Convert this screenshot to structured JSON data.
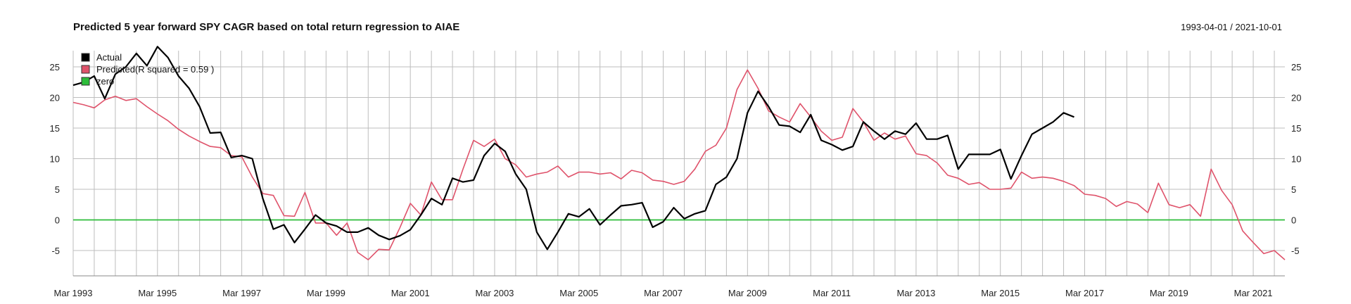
{
  "chart_data": {
    "type": "line",
    "title": "Predicted 5 year forward SPY CAGR based on total return regression to AIAE",
    "date_range": "1993-04-01 / 2021-10-01",
    "xlabel": "",
    "ylabel": "",
    "x_range": [
      1993.0,
      2021.75
    ],
    "ylim": [
      -8,
      28
    ],
    "yticks": [
      -5,
      0,
      5,
      10,
      15,
      20,
      25
    ],
    "xticks": [
      {
        "year": 1993,
        "label": "Mar 1993"
      },
      {
        "year": 1995,
        "label": "Mar 1995"
      },
      {
        "year": 1997,
        "label": "Mar 1997"
      },
      {
        "year": 1999,
        "label": "Mar 1999"
      },
      {
        "year": 2001,
        "label": "Mar 2001"
      },
      {
        "year": 2003,
        "label": "Mar 2003"
      },
      {
        "year": 2005,
        "label": "Mar 2005"
      },
      {
        "year": 2007,
        "label": "Mar 2007"
      },
      {
        "year": 2009,
        "label": "Mar 2009"
      },
      {
        "year": 2011,
        "label": "Mar 2011"
      },
      {
        "year": 2013,
        "label": "Mar 2013"
      },
      {
        "year": 2015,
        "label": "Mar 2015"
      },
      {
        "year": 2017,
        "label": "Mar 2017"
      },
      {
        "year": 2019,
        "label": "Mar 2019"
      },
      {
        "year": 2021,
        "label": "Mar 2021"
      }
    ],
    "grid": true,
    "legend_position": "top-left",
    "series": [
      {
        "name": "Actual",
        "color": "#000000",
        "points": [
          [
            1993.0,
            22.0
          ],
          [
            1993.25,
            22.5
          ],
          [
            1993.5,
            23.5
          ],
          [
            1993.75,
            19.8
          ],
          [
            1994.0,
            23.8
          ],
          [
            1994.25,
            25.0
          ],
          [
            1994.5,
            27.2
          ],
          [
            1994.75,
            25.2
          ],
          [
            1995.0,
            28.3
          ],
          [
            1995.25,
            26.5
          ],
          [
            1995.5,
            23.5
          ],
          [
            1995.75,
            21.5
          ],
          [
            1996.0,
            18.5
          ],
          [
            1996.25,
            14.2
          ],
          [
            1996.5,
            14.3
          ],
          [
            1996.75,
            10.2
          ],
          [
            1997.0,
            10.5
          ],
          [
            1997.25,
            10.0
          ],
          [
            1997.5,
            3.5
          ],
          [
            1997.75,
            -1.5
          ],
          [
            1998.0,
            -0.8
          ],
          [
            1998.25,
            -3.7
          ],
          [
            1998.5,
            -1.5
          ],
          [
            1998.75,
            0.8
          ],
          [
            1999.0,
            -0.5
          ],
          [
            1999.25,
            -1.0
          ],
          [
            1999.5,
            -2.0
          ],
          [
            1999.75,
            -2.0
          ],
          [
            2000.0,
            -1.3
          ],
          [
            2000.25,
            -2.5
          ],
          [
            2000.5,
            -3.2
          ],
          [
            2000.75,
            -2.6
          ],
          [
            2001.0,
            -1.6
          ],
          [
            2001.25,
            0.8
          ],
          [
            2001.5,
            3.5
          ],
          [
            2001.75,
            2.5
          ],
          [
            2002.0,
            6.8
          ],
          [
            2002.25,
            6.2
          ],
          [
            2002.5,
            6.5
          ],
          [
            2002.75,
            10.5
          ],
          [
            2003.0,
            12.5
          ],
          [
            2003.25,
            11.2
          ],
          [
            2003.5,
            7.5
          ],
          [
            2003.75,
            5.0
          ],
          [
            2004.0,
            -2.0
          ],
          [
            2004.25,
            -4.8
          ],
          [
            2004.5,
            -2.0
          ],
          [
            2004.75,
            1.0
          ],
          [
            2005.0,
            0.5
          ],
          [
            2005.25,
            1.8
          ],
          [
            2005.5,
            -0.8
          ],
          [
            2005.75,
            0.8
          ],
          [
            2006.0,
            2.3
          ],
          [
            2006.25,
            2.5
          ],
          [
            2006.5,
            2.8
          ],
          [
            2006.75,
            -1.2
          ],
          [
            2007.0,
            -0.3
          ],
          [
            2007.25,
            2.0
          ],
          [
            2007.5,
            0.2
          ],
          [
            2007.75,
            1.0
          ],
          [
            2008.0,
            1.5
          ],
          [
            2008.25,
            5.8
          ],
          [
            2008.5,
            7.0
          ],
          [
            2008.75,
            10.0
          ],
          [
            2009.0,
            17.5
          ],
          [
            2009.25,
            21.0
          ],
          [
            2009.5,
            18.5
          ],
          [
            2009.75,
            15.5
          ],
          [
            2010.0,
            15.3
          ],
          [
            2010.25,
            14.3
          ],
          [
            2010.5,
            17.2
          ],
          [
            2010.75,
            13.0
          ],
          [
            2011.0,
            12.3
          ],
          [
            2011.25,
            11.4
          ],
          [
            2011.5,
            12.0
          ],
          [
            2011.75,
            16.0
          ],
          [
            2012.0,
            14.5
          ],
          [
            2012.25,
            13.2
          ],
          [
            2012.5,
            14.5
          ],
          [
            2012.75,
            14.0
          ],
          [
            2013.0,
            15.8
          ],
          [
            2013.25,
            13.2
          ],
          [
            2013.5,
            13.2
          ],
          [
            2013.75,
            13.8
          ],
          [
            2014.0,
            8.3
          ],
          [
            2014.25,
            10.7
          ],
          [
            2014.5,
            10.7
          ],
          [
            2014.75,
            10.7
          ],
          [
            2015.0,
            11.5
          ],
          [
            2015.25,
            6.7
          ],
          [
            2015.5,
            10.5
          ],
          [
            2015.75,
            14.0
          ],
          [
            2016.0,
            15.0
          ],
          [
            2016.25,
            16.0
          ],
          [
            2016.5,
            17.5
          ],
          [
            2016.75,
            16.8
          ]
        ]
      },
      {
        "name": "Predicted(R squared = 0.59 )",
        "color": "#DF536B",
        "points": [
          [
            1993.0,
            19.2
          ],
          [
            1993.25,
            18.8
          ],
          [
            1993.5,
            18.3
          ],
          [
            1993.75,
            19.6
          ],
          [
            1994.0,
            20.2
          ],
          [
            1994.25,
            19.5
          ],
          [
            1994.5,
            19.8
          ],
          [
            1994.75,
            18.5
          ],
          [
            1995.0,
            17.3
          ],
          [
            1995.25,
            16.2
          ],
          [
            1995.5,
            14.8
          ],
          [
            1995.75,
            13.7
          ],
          [
            1996.0,
            12.8
          ],
          [
            1996.25,
            12.0
          ],
          [
            1996.5,
            11.8
          ],
          [
            1996.75,
            10.5
          ],
          [
            1997.0,
            10.3
          ],
          [
            1997.25,
            7.0
          ],
          [
            1997.5,
            4.3
          ],
          [
            1997.75,
            4.0
          ],
          [
            1998.0,
            0.7
          ],
          [
            1998.25,
            0.6
          ],
          [
            1998.5,
            4.5
          ],
          [
            1998.75,
            -0.5
          ],
          [
            1999.0,
            -0.5
          ],
          [
            1999.25,
            -2.5
          ],
          [
            1999.5,
            -0.5
          ],
          [
            1999.75,
            -5.3
          ],
          [
            2000.0,
            -6.5
          ],
          [
            2000.25,
            -4.8
          ],
          [
            2000.5,
            -4.9
          ],
          [
            2000.75,
            -1.3
          ],
          [
            2001.0,
            2.7
          ],
          [
            2001.25,
            0.8
          ],
          [
            2001.5,
            6.2
          ],
          [
            2001.75,
            3.3
          ],
          [
            2002.0,
            3.3
          ],
          [
            2002.25,
            8.3
          ],
          [
            2002.5,
            13.0
          ],
          [
            2002.75,
            12.0
          ],
          [
            2003.0,
            13.2
          ],
          [
            2003.25,
            10.0
          ],
          [
            2003.5,
            9.0
          ],
          [
            2003.75,
            7.0
          ],
          [
            2004.0,
            7.5
          ],
          [
            2004.25,
            7.8
          ],
          [
            2004.5,
            8.8
          ],
          [
            2004.75,
            7.0
          ],
          [
            2005.0,
            7.8
          ],
          [
            2005.25,
            7.8
          ],
          [
            2005.5,
            7.5
          ],
          [
            2005.75,
            7.7
          ],
          [
            2006.0,
            6.7
          ],
          [
            2006.25,
            8.1
          ],
          [
            2006.5,
            7.7
          ],
          [
            2006.75,
            6.5
          ],
          [
            2007.0,
            6.3
          ],
          [
            2007.25,
            5.8
          ],
          [
            2007.5,
            6.3
          ],
          [
            2007.75,
            8.3
          ],
          [
            2008.0,
            11.2
          ],
          [
            2008.25,
            12.2
          ],
          [
            2008.5,
            15.0
          ],
          [
            2008.75,
            21.3
          ],
          [
            2009.0,
            24.5
          ],
          [
            2009.25,
            21.5
          ],
          [
            2009.5,
            17.8
          ],
          [
            2009.75,
            16.8
          ],
          [
            2010.0,
            16.0
          ],
          [
            2010.25,
            19.0
          ],
          [
            2010.5,
            16.8
          ],
          [
            2010.75,
            14.5
          ],
          [
            2011.0,
            13.0
          ],
          [
            2011.25,
            13.5
          ],
          [
            2011.5,
            18.2
          ],
          [
            2011.75,
            16.0
          ],
          [
            2012.0,
            13.0
          ],
          [
            2012.25,
            14.2
          ],
          [
            2012.5,
            13.2
          ],
          [
            2012.75,
            13.7
          ],
          [
            2013.0,
            10.8
          ],
          [
            2013.25,
            10.5
          ],
          [
            2013.5,
            9.3
          ],
          [
            2013.75,
            7.3
          ],
          [
            2014.0,
            6.8
          ],
          [
            2014.25,
            5.8
          ],
          [
            2014.5,
            6.1
          ],
          [
            2014.75,
            5.0
          ],
          [
            2015.0,
            5.0
          ],
          [
            2015.25,
            5.2
          ],
          [
            2015.5,
            7.8
          ],
          [
            2015.75,
            6.8
          ],
          [
            2016.0,
            7.0
          ],
          [
            2016.25,
            6.8
          ],
          [
            2016.5,
            6.3
          ],
          [
            2016.75,
            5.6
          ],
          [
            2017.0,
            4.2
          ],
          [
            2017.25,
            4.0
          ],
          [
            2017.5,
            3.5
          ],
          [
            2017.75,
            2.2
          ],
          [
            2018.0,
            3.0
          ],
          [
            2018.25,
            2.6
          ],
          [
            2018.5,
            1.2
          ],
          [
            2018.75,
            6.0
          ],
          [
            2019.0,
            2.5
          ],
          [
            2019.25,
            2.0
          ],
          [
            2019.5,
            2.5
          ],
          [
            2019.75,
            0.6
          ],
          [
            2020.0,
            8.3
          ],
          [
            2020.25,
            4.8
          ],
          [
            2020.5,
            2.5
          ],
          [
            2020.75,
            -1.8
          ],
          [
            2021.0,
            -3.7
          ],
          [
            2021.25,
            -5.5
          ],
          [
            2021.5,
            -5.0
          ],
          [
            2021.75,
            -6.5
          ]
        ]
      },
      {
        "name": "zero",
        "color": "#2DBD3A",
        "points": [
          [
            1993.0,
            0
          ],
          [
            2021.75,
            0
          ]
        ]
      }
    ]
  }
}
